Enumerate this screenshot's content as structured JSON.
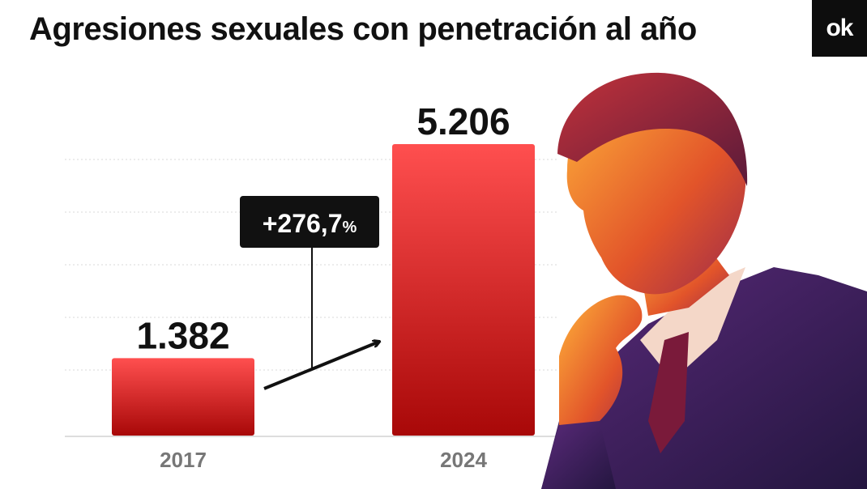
{
  "header": {
    "title": "Agresiones sexuales con penetración al año"
  },
  "brand": {
    "logo_text": "ok"
  },
  "chart_data": {
    "type": "bar",
    "title": "Agresiones sexuales con penetración al año",
    "categories": [
      "2017",
      "2024"
    ],
    "values": [
      1382,
      5206
    ],
    "value_labels": [
      "1.382",
      "5.206"
    ],
    "ylim": [
      0,
      5206
    ],
    "grid": true,
    "xlabel": "",
    "ylabel": "",
    "annotation": {
      "value_text": "+276,7",
      "unit_text": "%"
    }
  },
  "colors": {
    "bar_top": "#ff4f4f",
    "bar_bottom": "#a80808",
    "annotation_bg": "#111111",
    "grid": "#d8d8d8",
    "tick": "#777777"
  },
  "photo": {
    "icon": "person-photo-icon"
  }
}
